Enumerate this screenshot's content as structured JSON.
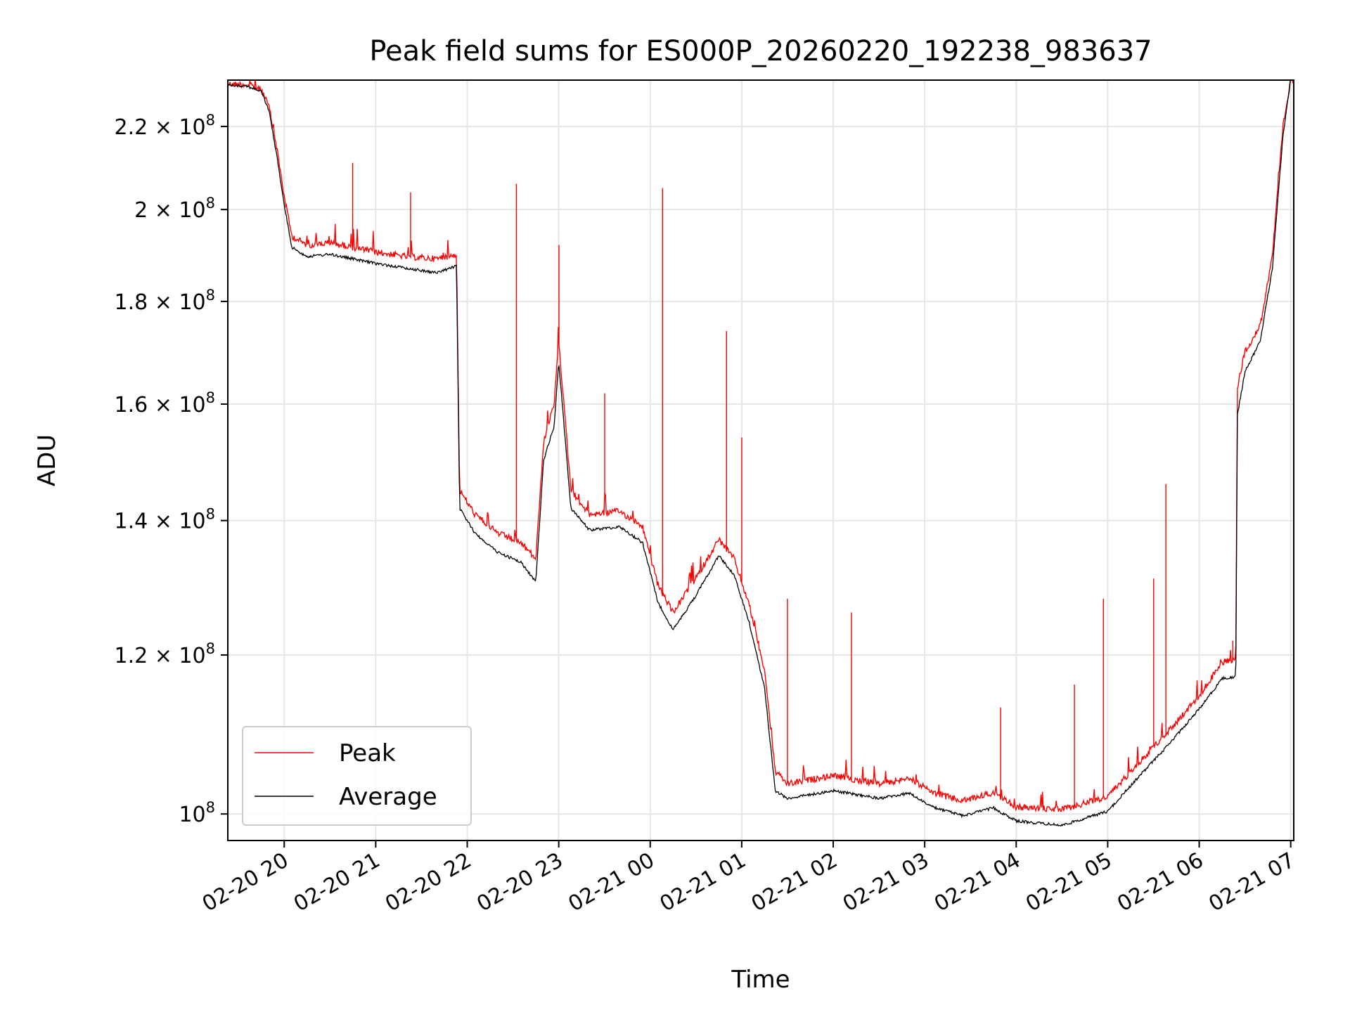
{
  "chart_data": {
    "type": "line",
    "title": "Peak field sums for ES000P_20260220_192238_983637",
    "xlabel": "Time",
    "ylabel": "ADU",
    "y_scale": "log",
    "ylim": [
      97000000,
      232000000
    ],
    "xlim": [
      "2026-02-20 19:23:00",
      "2026-02-21 07:02:00"
    ],
    "grid": true,
    "legend_position": "lower-left",
    "x_ticks": [
      {
        "t": "2026-02-20 20:00",
        "label": "02-20 20"
      },
      {
        "t": "2026-02-20 21:00",
        "label": "02-20 21"
      },
      {
        "t": "2026-02-20 22:00",
        "label": "02-20 22"
      },
      {
        "t": "2026-02-20 23:00",
        "label": "02-20 23"
      },
      {
        "t": "2026-02-21 00:00",
        "label": "02-21 00"
      },
      {
        "t": "2026-02-21 01:00",
        "label": "02-21 01"
      },
      {
        "t": "2026-02-21 02:00",
        "label": "02-21 02"
      },
      {
        "t": "2026-02-21 03:00",
        "label": "02-21 03"
      },
      {
        "t": "2026-02-21 04:00",
        "label": "02-21 04"
      },
      {
        "t": "2026-02-21 05:00",
        "label": "02-21 05"
      },
      {
        "t": "2026-02-21 06:00",
        "label": "02-21 06"
      },
      {
        "t": "2026-02-21 07:00",
        "label": "02-21 07"
      }
    ],
    "y_ticks": [
      {
        "value": 100000000,
        "mantissa": "",
        "exponent": "8"
      },
      {
        "value": 120000000,
        "mantissa": "1.2",
        "exponent": "8"
      },
      {
        "value": 140000000,
        "mantissa": "1.4",
        "exponent": "8"
      },
      {
        "value": 160000000,
        "mantissa": "1.6",
        "exponent": "8"
      },
      {
        "value": 180000000,
        "mantissa": "1.8",
        "exponent": "8"
      },
      {
        "value": 200000000,
        "mantissa": "2",
        "exponent": "8"
      },
      {
        "value": 220000000,
        "mantissa": "2.2",
        "exponent": "8"
      }
    ],
    "series": [
      {
        "name": "Peak",
        "color": "#ff0000",
        "points": [
          [
            "2026-02-20 19:23",
            231000000
          ],
          [
            "2026-02-20 19:35",
            230800000
          ],
          [
            "2026-02-20 19:45",
            229500000
          ],
          [
            "2026-02-20 19:50",
            225000000
          ],
          [
            "2026-02-20 19:55",
            215000000
          ],
          [
            "2026-02-20 20:00",
            203000000
          ],
          [
            "2026-02-20 20:05",
            194000000
          ],
          [
            "2026-02-20 20:15",
            192000000
          ],
          [
            "2026-02-20 20:30",
            192500000
          ],
          [
            "2026-02-20 20:45",
            191500000
          ],
          [
            "2026-02-20 21:00",
            190500000
          ],
          [
            "2026-02-20 21:20",
            189500000
          ],
          [
            "2026-02-20 21:40",
            189000000
          ],
          [
            "2026-02-20 21:53",
            190000000
          ],
          [
            "2026-02-20 21:55",
            145000000
          ],
          [
            "2026-02-20 22:05",
            141000000
          ],
          [
            "2026-02-20 22:20",
            138000000
          ],
          [
            "2026-02-20 22:35",
            136500000
          ],
          [
            "2026-02-20 22:45",
            134000000
          ],
          [
            "2026-02-20 22:50",
            153000000
          ],
          [
            "2026-02-20 22:57",
            160000000
          ],
          [
            "2026-02-20 23:00",
            172000000
          ],
          [
            "2026-02-20 23:08",
            145000000
          ],
          [
            "2026-02-20 23:20",
            141000000
          ],
          [
            "2026-02-20 23:40",
            141500000
          ],
          [
            "2026-02-20 23:55",
            139000000
          ],
          [
            "2026-02-21 00:05",
            130000000
          ],
          [
            "2026-02-21 00:15",
            126000000
          ],
          [
            "2026-02-21 00:30",
            131000000
          ],
          [
            "2026-02-21 00:45",
            137000000
          ],
          [
            "2026-02-21 00:55",
            134000000
          ],
          [
            "2026-02-21 01:05",
            127000000
          ],
          [
            "2026-02-21 01:15",
            118000000
          ],
          [
            "2026-02-21 01:22",
            105000000
          ],
          [
            "2026-02-21 01:30",
            103500000
          ],
          [
            "2026-02-21 02:00",
            104500000
          ],
          [
            "2026-02-21 02:30",
            103500000
          ],
          [
            "2026-02-21 02:50",
            104200000
          ],
          [
            "2026-02-21 03:05",
            102500000
          ],
          [
            "2026-02-21 03:25",
            101500000
          ],
          [
            "2026-02-21 03:45",
            102500000
          ],
          [
            "2026-02-21 04:00",
            100800000
          ],
          [
            "2026-02-21 04:30",
            100500000
          ],
          [
            "2026-02-21 05:00",
            102000000
          ],
          [
            "2026-02-21 05:20",
            106000000
          ],
          [
            "2026-02-21 05:40",
            110000000
          ],
          [
            "2026-02-21 06:00",
            114500000
          ],
          [
            "2026-02-21 06:15",
            119000000
          ],
          [
            "2026-02-21 06:24",
            119500000
          ],
          [
            "2026-02-21 06:25",
            163000000
          ],
          [
            "2026-02-21 06:30",
            170000000
          ],
          [
            "2026-02-21 06:40",
            175000000
          ],
          [
            "2026-02-21 06:48",
            190000000
          ],
          [
            "2026-02-21 06:55",
            220000000
          ],
          [
            "2026-02-21 07:00",
            232000000
          ]
        ],
        "spikes": [
          [
            "2026-02-20 20:45",
            211000000
          ],
          [
            "2026-02-20 21:23",
            204000000
          ],
          [
            "2026-02-20 22:32",
            206000000
          ],
          [
            "2026-02-20 23:00",
            192000000
          ],
          [
            "2026-02-20 23:30",
            162000000
          ],
          [
            "2026-02-21 00:08",
            205000000
          ],
          [
            "2026-02-21 00:50",
            174000000
          ],
          [
            "2026-02-21 01:00",
            154000000
          ],
          [
            "2026-02-21 01:30",
            128000000
          ],
          [
            "2026-02-21 02:12",
            126000000
          ],
          [
            "2026-02-21 03:50",
            113000000
          ],
          [
            "2026-02-21 04:38",
            116000000
          ],
          [
            "2026-02-21 04:57",
            128000000
          ],
          [
            "2026-02-21 05:30",
            131000000
          ],
          [
            "2026-02-21 05:38",
            146000000
          ],
          [
            "2026-02-21 06:22",
            122000000
          ]
        ]
      },
      {
        "name": "Average",
        "color": "#000000",
        "points": [
          [
            "2026-02-20 19:23",
            230700000
          ],
          [
            "2026-02-20 19:35",
            230500000
          ],
          [
            "2026-02-20 19:45",
            229000000
          ],
          [
            "2026-02-20 19:50",
            224000000
          ],
          [
            "2026-02-20 19:55",
            213000000
          ],
          [
            "2026-02-20 20:00",
            201000000
          ],
          [
            "2026-02-20 20:05",
            191500000
          ],
          [
            "2026-02-20 20:15",
            189500000
          ],
          [
            "2026-02-20 20:30",
            190000000
          ],
          [
            "2026-02-20 20:45",
            189000000
          ],
          [
            "2026-02-20 21:00",
            188000000
          ],
          [
            "2026-02-20 21:20",
            187000000
          ],
          [
            "2026-02-20 21:40",
            186000000
          ],
          [
            "2026-02-20 21:53",
            187500000
          ],
          [
            "2026-02-20 21:55",
            142000000
          ],
          [
            "2026-02-20 22:05",
            138000000
          ],
          [
            "2026-02-20 22:20",
            135000000
          ],
          [
            "2026-02-20 22:35",
            133500000
          ],
          [
            "2026-02-20 22:45",
            130500000
          ],
          [
            "2026-02-20 22:50",
            150000000
          ],
          [
            "2026-02-20 22:57",
            156000000
          ],
          [
            "2026-02-20 23:00",
            168000000
          ],
          [
            "2026-02-20 23:08",
            142000000
          ],
          [
            "2026-02-20 23:20",
            138500000
          ],
          [
            "2026-02-20 23:40",
            139000000
          ],
          [
            "2026-02-20 23:55",
            136500000
          ],
          [
            "2026-02-21 00:05",
            127500000
          ],
          [
            "2026-02-21 00:15",
            123500000
          ],
          [
            "2026-02-21 00:30",
            128500000
          ],
          [
            "2026-02-21 00:45",
            134500000
          ],
          [
            "2026-02-21 00:55",
            131500000
          ],
          [
            "2026-02-21 01:05",
            124500000
          ],
          [
            "2026-02-21 01:15",
            115500000
          ],
          [
            "2026-02-21 01:22",
            102700000
          ],
          [
            "2026-02-21 01:30",
            101800000
          ],
          [
            "2026-02-21 02:00",
            102700000
          ],
          [
            "2026-02-21 02:30",
            101800000
          ],
          [
            "2026-02-21 02:50",
            102400000
          ],
          [
            "2026-02-21 03:05",
            100800000
          ],
          [
            "2026-02-21 03:25",
            99800000
          ],
          [
            "2026-02-21 03:45",
            100700000
          ],
          [
            "2026-02-21 04:00",
            99200000
          ],
          [
            "2026-02-21 04:30",
            98700000
          ],
          [
            "2026-02-21 05:00",
            100300000
          ],
          [
            "2026-02-21 05:20",
            104300000
          ],
          [
            "2026-02-21 05:40",
            108300000
          ],
          [
            "2026-02-21 06:00",
            112800000
          ],
          [
            "2026-02-21 06:15",
            116800000
          ],
          [
            "2026-02-21 06:24",
            117000000
          ],
          [
            "2026-02-21 06:25",
            158000000
          ],
          [
            "2026-02-21 06:30",
            166000000
          ],
          [
            "2026-02-21 06:40",
            172000000
          ],
          [
            "2026-02-21 06:48",
            187000000
          ],
          [
            "2026-02-21 06:55",
            218000000
          ],
          [
            "2026-02-21 07:00",
            232000000
          ]
        ],
        "spikes": []
      }
    ]
  }
}
